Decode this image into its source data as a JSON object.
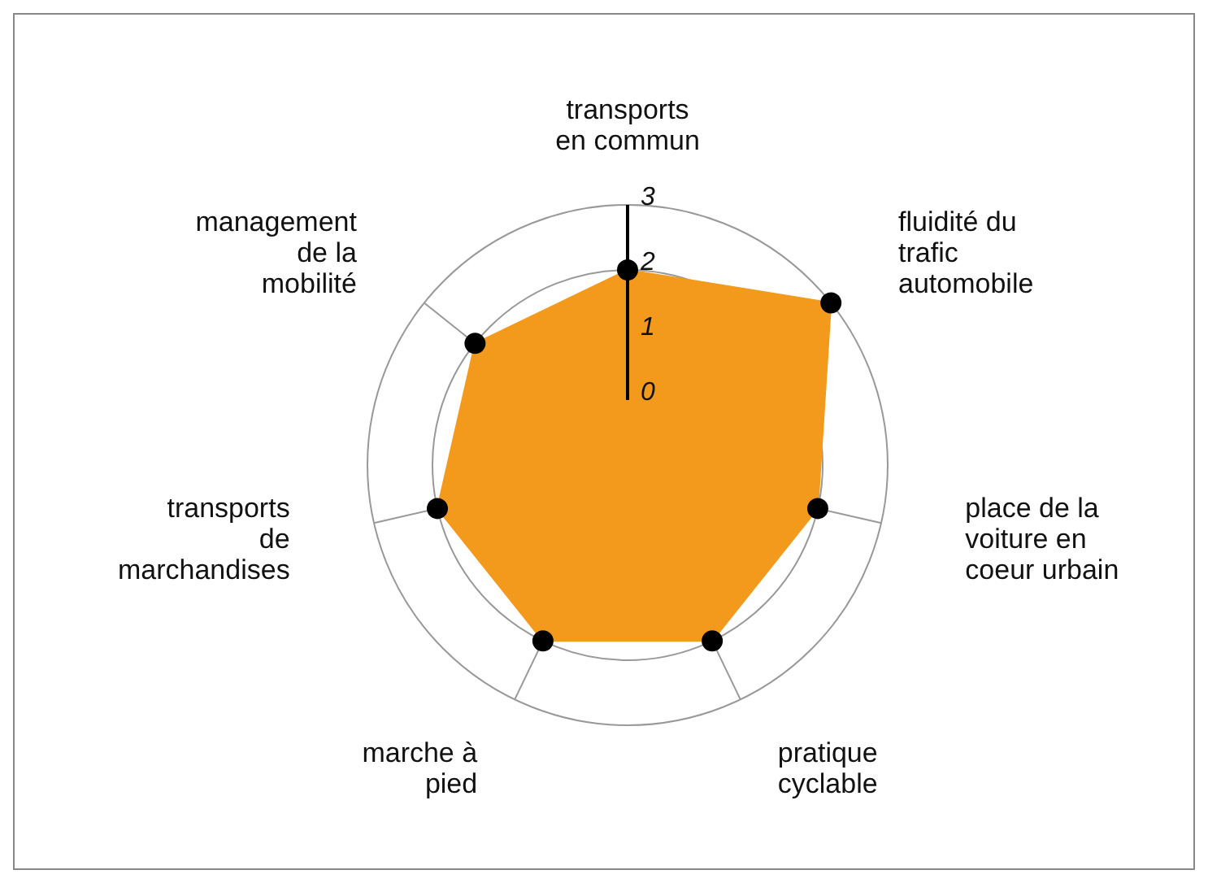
{
  "chart_data": {
    "type": "radar",
    "categories": [
      "transports en commun",
      "fluidité du trafic automobile",
      "place de la voiture en coeur urbain",
      "pratique cyclable",
      "marche à pied",
      "transports de marchandises",
      "management de la mobilité"
    ],
    "series": [
      {
        "color": "#f39a1c",
        "values": [
          2,
          3,
          2,
          2,
          2,
          2,
          2
        ]
      }
    ],
    "ylim": [
      -1,
      3
    ],
    "yticks": [
      0,
      1,
      2,
      3
    ],
    "marker": "circle",
    "grid": true,
    "legend": false
  }
}
